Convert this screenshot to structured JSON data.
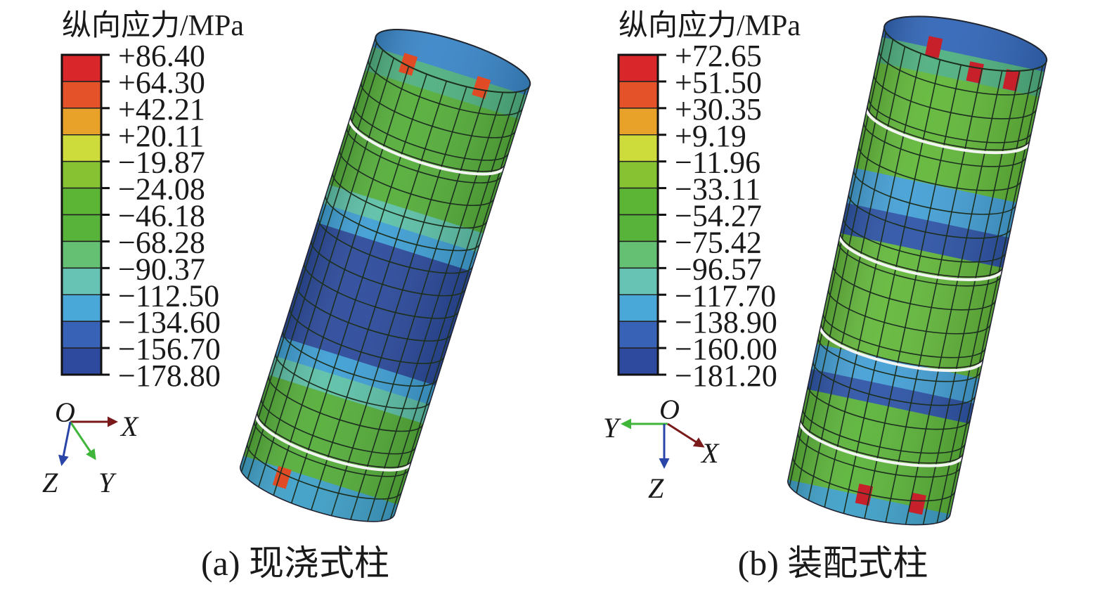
{
  "panels": [
    {
      "legend_title": "纵向应力/MPa",
      "legend_values": [
        "+86.40",
        "+64.30",
        "+42.21",
        "+20.11",
        "−19.87",
        "−24.08",
        "−46.18",
        "−68.28",
        "−90.37",
        "−112.50",
        "−134.60",
        "−156.70",
        "−178.80"
      ],
      "axes": {
        "origin": "O",
        "x": "X",
        "y": "Y",
        "z": "Z"
      },
      "caption": "(a) 现浇式柱"
    },
    {
      "legend_title": "纵向应力/MPa",
      "legend_values": [
        "+72.65",
        "+51.50",
        "+30.35",
        "+9.19",
        "−11.96",
        "−33.11",
        "−54.27",
        "−75.42",
        "−96.57",
        "−117.70",
        "−138.90",
        "−160.00",
        "−181.20"
      ],
      "axes": {
        "origin": "O",
        "x": "X",
        "y": "Y",
        "z": "Z"
      },
      "caption": "(b) 装配式柱"
    }
  ],
  "legend_colors": [
    "#d9262b",
    "#e4522a",
    "#e8a22a",
    "#cddc3a",
    "#86c232",
    "#5db535",
    "#58b33a",
    "#66c073",
    "#67c4b5",
    "#4aa8d8",
    "#3862b5",
    "#2e4a9e"
  ],
  "axis_colors": {
    "x": "#7a1a1a",
    "y": "#3fb53a",
    "z": "#2a45a8"
  }
}
